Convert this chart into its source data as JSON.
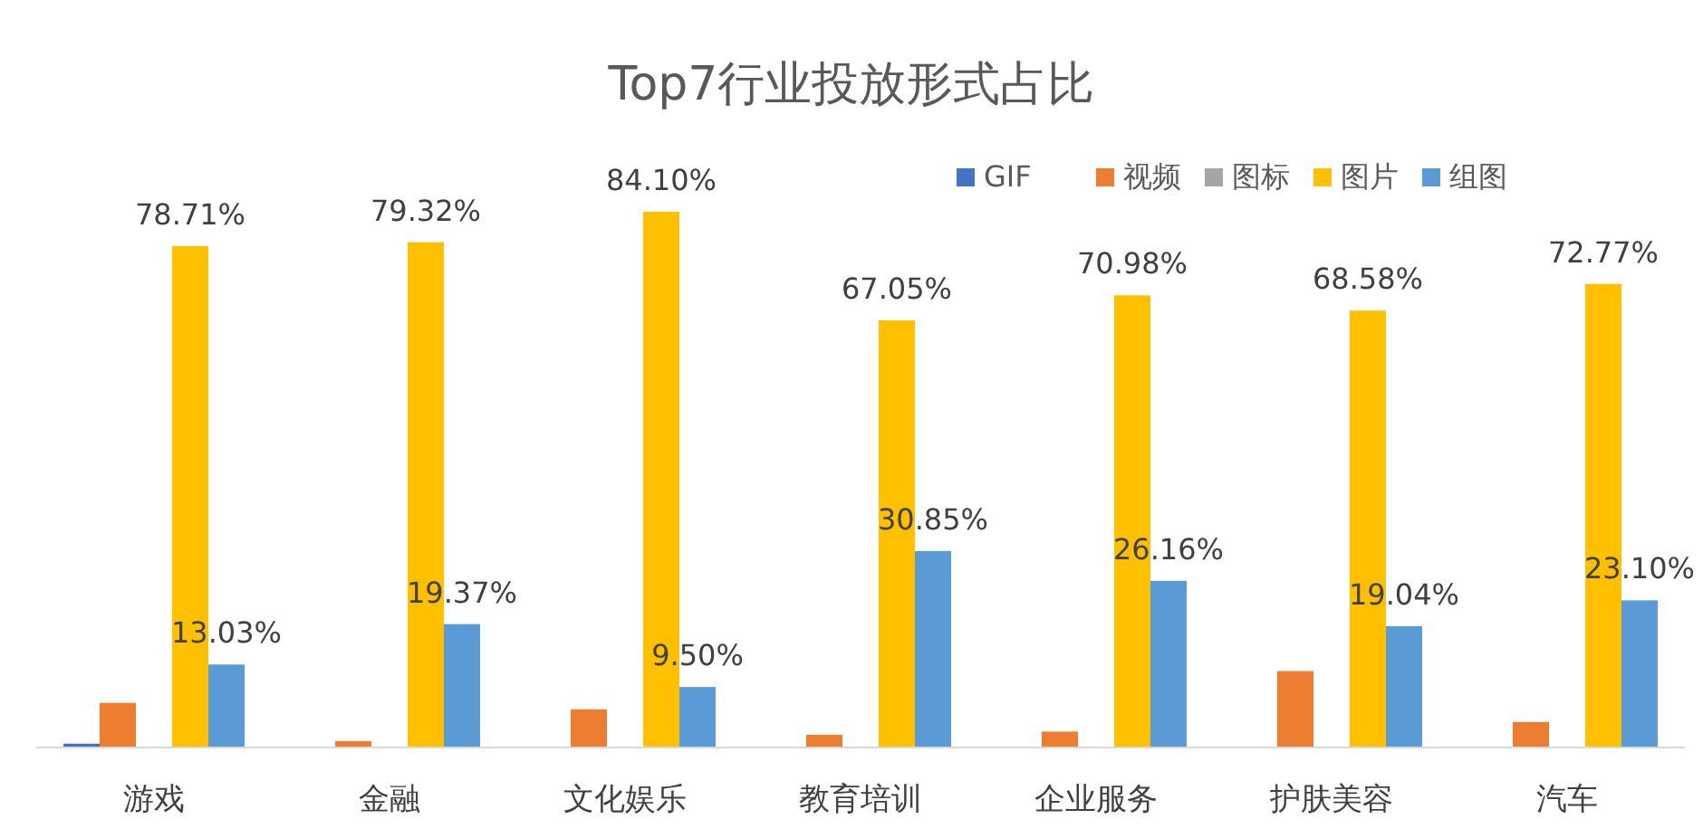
{
  "chart_data": {
    "type": "bar",
    "title": "Top7行业投放形式占比",
    "categories": [
      "游戏",
      "金融",
      "文化娱乐",
      "教育培训",
      "企业服务",
      "护肤美容",
      "汽车"
    ],
    "series": [
      {
        "name": "GIF",
        "color": "#4472c4",
        "values": [
          0.6,
          0,
          0,
          0,
          0,
          0,
          0
        ]
      },
      {
        "name": "视频",
        "color": "#ed7d31",
        "values": [
          7.0,
          1.0,
          6.0,
          2.0,
          2.5,
          12.0,
          4.0
        ]
      },
      {
        "name": "图标",
        "color": "#a5a5a5",
        "values": [
          0,
          0,
          0,
          0,
          0,
          0,
          0
        ]
      },
      {
        "name": "图片",
        "color": "#ffc000",
        "values": [
          78.71,
          79.32,
          84.1,
          67.05,
          70.98,
          68.58,
          72.77
        ],
        "value_labels": [
          "78.71%",
          "79.32%",
          "84.10%",
          "67.05%",
          "70.98%",
          "68.58%",
          "72.77%"
        ]
      },
      {
        "name": "组图",
        "color": "#5b9bd5",
        "values": [
          13.03,
          19.37,
          9.5,
          30.85,
          26.16,
          19.04,
          23.1
        ],
        "value_labels": [
          "13.03%",
          "19.37%",
          "9.50%",
          "30.85%",
          "26.16%",
          "19.04%",
          "23.10%"
        ]
      }
    ],
    "legend": "top right"
  }
}
